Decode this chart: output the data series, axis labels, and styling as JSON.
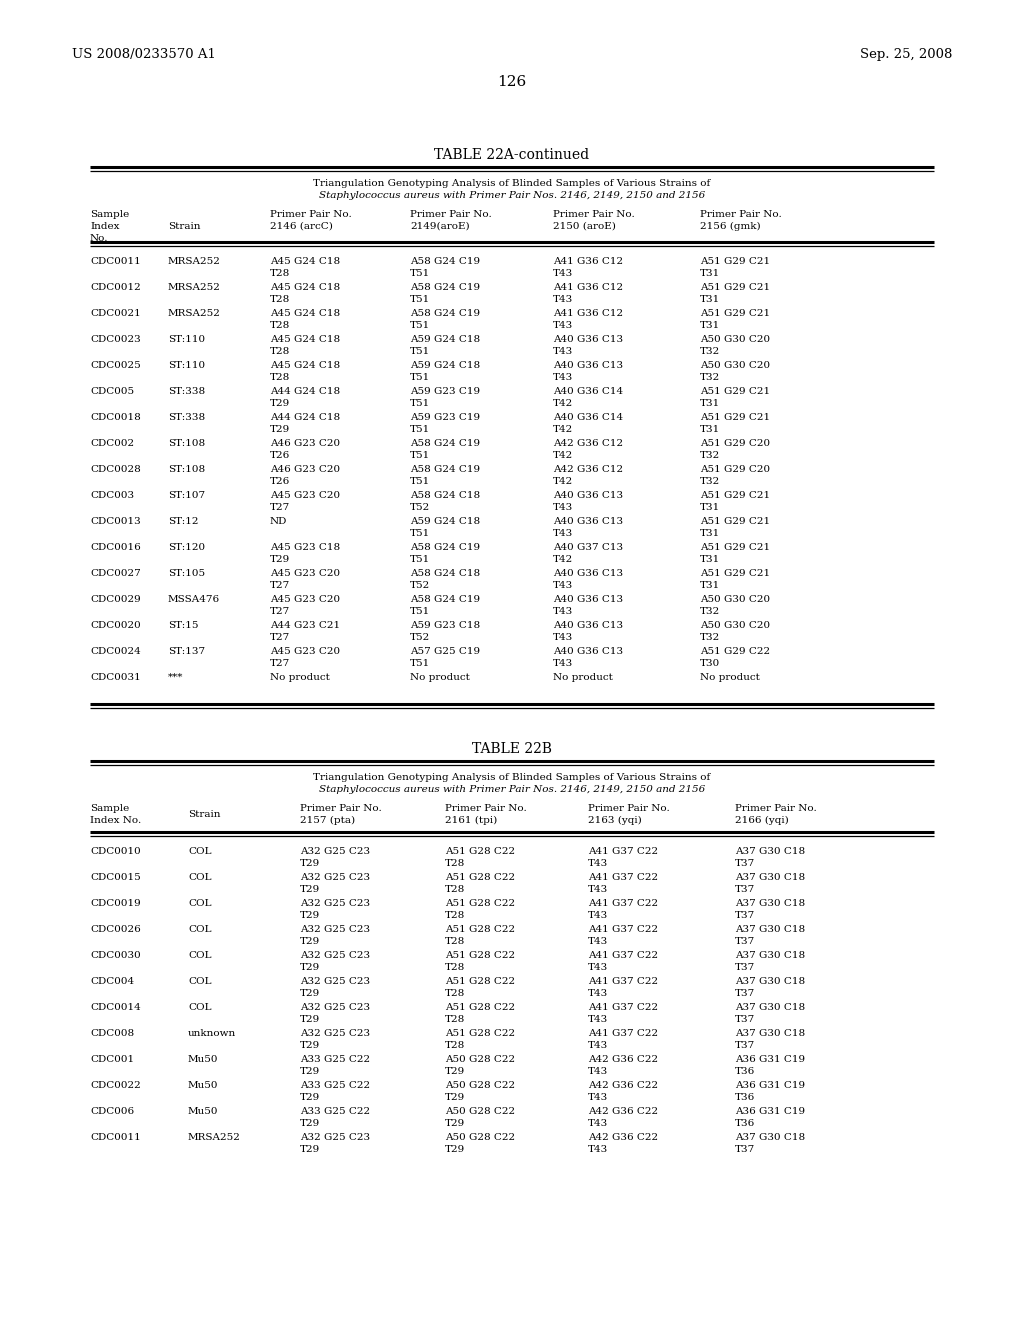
{
  "header_left": "US 2008/0233570 A1",
  "header_right": "Sep. 25, 2008",
  "page_number": "126",
  "table1_title": "TABLE 22A-continued",
  "table1_subtitle1": "Triangulation Genotyping Analysis of Blinded Samples of Various Strains of",
  "table1_subtitle2": "Staphylococcus aureus with Primer Pair Nos. 2146, 2149, 2150 and 2156",
  "table1_rows": [
    [
      "CDC0011",
      "MRSA252",
      "A45 G24 C18",
      "T28",
      "A58 G24 C19",
      "T51",
      "A41 G36 C12",
      "T43",
      "A51 G29 C21",
      "T31"
    ],
    [
      "CDC0012",
      "MRSA252",
      "A45 G24 C18",
      "T28",
      "A58 G24 C19",
      "T51",
      "A41 G36 C12",
      "T43",
      "A51 G29 C21",
      "T31"
    ],
    [
      "CDC0021",
      "MRSA252",
      "A45 G24 C18",
      "T28",
      "A58 G24 C19",
      "T51",
      "A41 G36 C12",
      "T43",
      "A51 G29 C21",
      "T31"
    ],
    [
      "CDC0023",
      "ST:110",
      "A45 G24 C18",
      "T28",
      "A59 G24 C18",
      "T51",
      "A40 G36 C13",
      "T43",
      "A50 G30 C20",
      "T32"
    ],
    [
      "CDC0025",
      "ST:110",
      "A45 G24 C18",
      "T28",
      "A59 G24 C18",
      "T51",
      "A40 G36 C13",
      "T43",
      "A50 G30 C20",
      "T32"
    ],
    [
      "CDC005",
      "ST:338",
      "A44 G24 C18",
      "T29",
      "A59 G23 C19",
      "T51",
      "A40 G36 C14",
      "T42",
      "A51 G29 C21",
      "T31"
    ],
    [
      "CDC0018",
      "ST:338",
      "A44 G24 C18",
      "T29",
      "A59 G23 C19",
      "T51",
      "A40 G36 C14",
      "T42",
      "A51 G29 C21",
      "T31"
    ],
    [
      "CDC002",
      "ST:108",
      "A46 G23 C20",
      "T26",
      "A58 G24 C19",
      "T51",
      "A42 G36 C12",
      "T42",
      "A51 G29 C20",
      "T32"
    ],
    [
      "CDC0028",
      "ST:108",
      "A46 G23 C20",
      "T26",
      "A58 G24 C19",
      "T51",
      "A42 G36 C12",
      "T42",
      "A51 G29 C20",
      "T32"
    ],
    [
      "CDC003",
      "ST:107",
      "A45 G23 C20",
      "T27",
      "A58 G24 C18",
      "T52",
      "A40 G36 C13",
      "T43",
      "A51 G29 C21",
      "T31"
    ],
    [
      "CDC0013",
      "ST:12",
      "ND",
      "",
      "A59 G24 C18",
      "T51",
      "A40 G36 C13",
      "T43",
      "A51 G29 C21",
      "T31"
    ],
    [
      "CDC0016",
      "ST:120",
      "A45 G23 C18",
      "T29",
      "A58 G24 C19",
      "T51",
      "A40 G37 C13",
      "T42",
      "A51 G29 C21",
      "T31"
    ],
    [
      "CDC0027",
      "ST:105",
      "A45 G23 C20",
      "T27",
      "A58 G24 C18",
      "T52",
      "A40 G36 C13",
      "T43",
      "A51 G29 C21",
      "T31"
    ],
    [
      "CDC0029",
      "MSSA476",
      "A45 G23 C20",
      "T27",
      "A58 G24 C19",
      "T51",
      "A40 G36 C13",
      "T43",
      "A50 G30 C20",
      "T32"
    ],
    [
      "CDC0020",
      "ST:15",
      "A44 G23 C21",
      "T27",
      "A59 G23 C18",
      "T52",
      "A40 G36 C13",
      "T43",
      "A50 G30 C20",
      "T32"
    ],
    [
      "CDC0024",
      "ST:137",
      "A45 G23 C20",
      "T27",
      "A57 G25 C19",
      "T51",
      "A40 G36 C13",
      "T43",
      "A51 G29 C22",
      "T30"
    ],
    [
      "CDC0031",
      "***",
      "No product",
      "",
      "No product",
      "",
      "No product",
      "",
      "No product",
      ""
    ]
  ],
  "table2_title": "TABLE 22B",
  "table2_subtitle1": "Triangulation Genotyping Analysis of Blinded Samples of Various Strains of",
  "table2_subtitle2": "Staphylococcus aureus with Primer Pair Nos. 2146, 2149, 2150 and 2156",
  "table2_rows": [
    [
      "CDC0010",
      "COL",
      "A32 G25 C23",
      "T29",
      "A51 G28 C22",
      "T28",
      "A41 G37 C22",
      "T43",
      "A37 G30 C18",
      "T37"
    ],
    [
      "CDC0015",
      "COL",
      "A32 G25 C23",
      "T29",
      "A51 G28 C22",
      "T28",
      "A41 G37 C22",
      "T43",
      "A37 G30 C18",
      "T37"
    ],
    [
      "CDC0019",
      "COL",
      "A32 G25 C23",
      "T29",
      "A51 G28 C22",
      "T28",
      "A41 G37 C22",
      "T43",
      "A37 G30 C18",
      "T37"
    ],
    [
      "CDC0026",
      "COL",
      "A32 G25 C23",
      "T29",
      "A51 G28 C22",
      "T28",
      "A41 G37 C22",
      "T43",
      "A37 G30 C18",
      "T37"
    ],
    [
      "CDC0030",
      "COL",
      "A32 G25 C23",
      "T29",
      "A51 G28 C22",
      "T28",
      "A41 G37 C22",
      "T43",
      "A37 G30 C18",
      "T37"
    ],
    [
      "CDC004",
      "COL",
      "A32 G25 C23",
      "T29",
      "A51 G28 C22",
      "T28",
      "A41 G37 C22",
      "T43",
      "A37 G30 C18",
      "T37"
    ],
    [
      "CDC0014",
      "COL",
      "A32 G25 C23",
      "T29",
      "A51 G28 C22",
      "T28",
      "A41 G37 C22",
      "T43",
      "A37 G30 C18",
      "T37"
    ],
    [
      "CDC008",
      "unknown",
      "A32 G25 C23",
      "T29",
      "A51 G28 C22",
      "T28",
      "A41 G37 C22",
      "T43",
      "A37 G30 C18",
      "T37"
    ],
    [
      "CDC001",
      "Mu50",
      "A33 G25 C22",
      "T29",
      "A50 G28 C22",
      "T29",
      "A42 G36 C22",
      "T43",
      "A36 G31 C19",
      "T36"
    ],
    [
      "CDC0022",
      "Mu50",
      "A33 G25 C22",
      "T29",
      "A50 G28 C22",
      "T29",
      "A42 G36 C22",
      "T43",
      "A36 G31 C19",
      "T36"
    ],
    [
      "CDC006",
      "Mu50",
      "A33 G25 C22",
      "T29",
      "A50 G28 C22",
      "T29",
      "A42 G36 C22",
      "T43",
      "A36 G31 C19",
      "T36"
    ],
    [
      "CDC0011",
      "MRSA252",
      "A32 G25 C23",
      "T29",
      "A50 G28 C22",
      "T29",
      "A42 G36 C22",
      "T43",
      "A37 G30 C18",
      "T37"
    ]
  ],
  "bg_color": "#ffffff"
}
